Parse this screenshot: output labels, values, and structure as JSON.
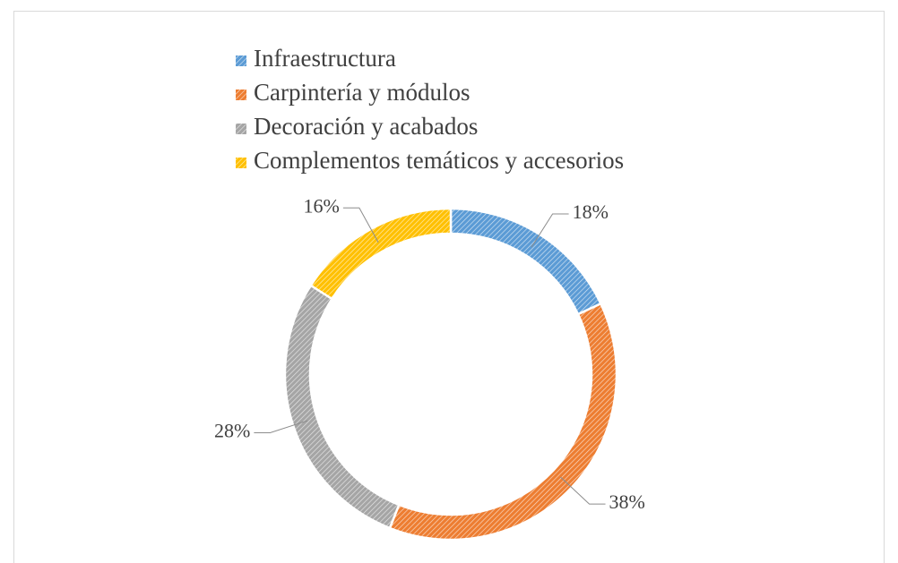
{
  "chart_data": {
    "type": "donut",
    "categories": [
      "Infraestructura",
      "Carpintería y módulos",
      "Decoración y acabados",
      "Complementos temáticos y accesorios"
    ],
    "values": [
      18,
      38,
      28,
      16
    ],
    "value_labels": [
      "18%",
      "38%",
      "28%",
      "16%"
    ],
    "colors": [
      "#5b9bd5",
      "#ed7d31",
      "#a5a5a5",
      "#ffc000"
    ],
    "legend": "top"
  }
}
